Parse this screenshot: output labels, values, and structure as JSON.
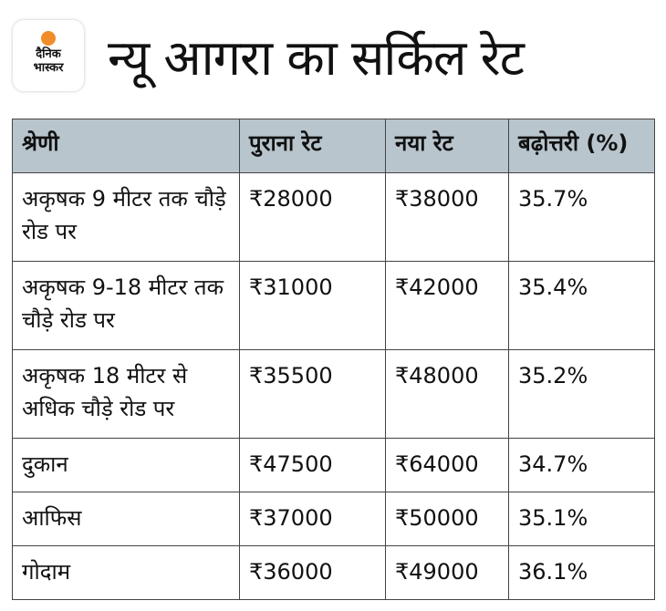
{
  "logo": {
    "line1": "दैनिक",
    "line2": "भास्कर",
    "accent": "#f28c28"
  },
  "title": "न्यू आगरा का सर्किल रेट",
  "table": {
    "headers": [
      "श्रेणी",
      "पुराना रेट",
      "नया रेट",
      "बढ़ोत्तरी (%)"
    ],
    "rows": [
      [
        "अकृषक 9 मीटर तक चौड़े रोड पर",
        "₹28000",
        "₹38000",
        "35.7%"
      ],
      [
        "अकृषक 9-18 मीटर तक चौड़े रोड पर",
        "₹31000",
        "₹42000",
        "35.4%"
      ],
      [
        "अकृषक 18 मीटर से अधिक चौड़े रोड पर",
        "₹35500",
        "₹48000",
        "35.2%"
      ],
      [
        "दुकान",
        "₹47500",
        "₹64000",
        "34.7%"
      ],
      [
        "आफिस",
        "₹37000",
        "₹50000",
        "35.1%"
      ],
      [
        "गोदाम",
        "₹36000",
        "₹49000",
        "36.1%"
      ]
    ]
  }
}
